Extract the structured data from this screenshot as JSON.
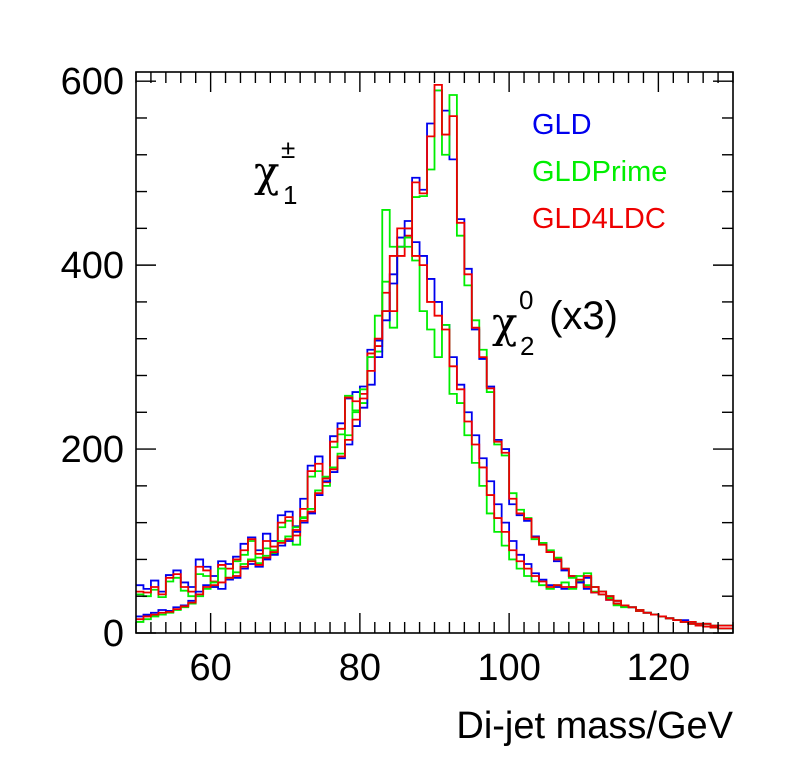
{
  "chart_data": {
    "type": "histogram-step",
    "xlabel": "Di-jet mass/GeV",
    "ylabel": "",
    "xlim": [
      50,
      130
    ],
    "ylim": [
      0,
      610
    ],
    "bin_width": 1,
    "x_start": 50,
    "x_ticks": [
      60,
      80,
      100,
      120
    ],
    "y_ticks": [
      0,
      200,
      400,
      600
    ],
    "grid": false,
    "legend_position": "top-right",
    "annotations": {
      "chargino": {
        "symbol": "χ",
        "sup": "±",
        "sub": "1"
      },
      "neutralino": {
        "symbol": "χ",
        "sup": "0",
        "sub": "2",
        "suffix": " (x3)"
      }
    },
    "series": [
      {
        "name": "GLD",
        "color": "#0000ee",
        "group": "chargino",
        "values": [
          52,
          48,
          57,
          45,
          63,
          68,
          55,
          50,
          80,
          72,
          62,
          78,
          75,
          83,
          97,
          104,
          90,
          108,
          100,
          128,
          132,
          116,
          146,
          182,
          192,
          168,
          214,
          228,
          255,
          262,
          268,
          308,
          318,
          350,
          390,
          430,
          448,
          495,
          482,
          554,
          590,
          568,
          515,
          450,
          396,
          330,
          298,
          268,
          210,
          200,
          140,
          128,
          122,
          105,
          98,
          88,
          78,
          68,
          62,
          55,
          48,
          44,
          42,
          36,
          32,
          30,
          28,
          24,
          22,
          20,
          18,
          16,
          14,
          14,
          12,
          10,
          10,
          8,
          8,
          8
        ]
      },
      {
        "name": "GLDPrime",
        "color": "#00ee00",
        "group": "chargino",
        "values": [
          42,
          40,
          47,
          39,
          56,
          60,
          46,
          40,
          64,
          62,
          50,
          70,
          60,
          78,
          85,
          100,
          82,
          92,
          86,
          115,
          122,
          96,
          126,
          170,
          176,
          160,
          202,
          216,
          258,
          242,
          250,
          300,
          306,
          382,
          332,
          420,
          420,
          474,
          475,
          504,
          590,
          520,
          585,
          432,
          378,
          340,
          308,
          262,
          205,
          193,
          152,
          134,
          125,
          102,
          98,
          90,
          82,
          70,
          60,
          56,
          52,
          45,
          42,
          38,
          30,
          28,
          28,
          24,
          22,
          20,
          18,
          16,
          14,
          12,
          12,
          10,
          10,
          8,
          8,
          8
        ]
      },
      {
        "name": "GLD4LDC",
        "color": "#ee0000",
        "group": "chargino",
        "values": [
          45,
          44,
          50,
          42,
          60,
          64,
          50,
          45,
          72,
          68,
          56,
          74,
          70,
          80,
          90,
          102,
          86,
          100,
          94,
          120,
          126,
          106,
          135,
          176,
          184,
          164,
          208,
          222,
          256,
          252,
          260,
          304,
          312,
          370,
          350,
          410,
          432,
          490,
          478,
          540,
          596,
          542,
          562,
          446,
          390,
          332,
          300,
          266,
          208,
          196,
          146,
          130,
          124,
          104,
          96,
          88,
          80,
          70,
          62,
          55,
          50,
          44,
          42,
          36,
          32,
          30,
          28,
          24,
          22,
          20,
          18,
          16,
          14,
          12,
          12,
          10,
          10,
          8,
          8,
          8
        ]
      },
      {
        "name": "GLD",
        "color": "#0000ee",
        "group": "neutralino",
        "values": [
          18,
          20,
          22,
          25,
          24,
          28,
          30,
          35,
          45,
          52,
          50,
          48,
          58,
          60,
          70,
          75,
          72,
          80,
          85,
          95,
          100,
          110,
          120,
          130,
          150,
          165,
          175,
          190,
          205,
          225,
          245,
          270,
          300,
          340,
          380,
          420,
          440,
          425,
          410,
          385,
          360,
          335,
          300,
          270,
          240,
          215,
          190,
          165,
          140,
          120,
          100,
          85,
          75,
          65,
          58,
          52,
          50,
          48,
          50,
          55,
          60,
          50,
          45,
          40,
          35,
          30,
          28,
          25,
          22,
          20,
          18,
          16,
          14,
          12,
          10,
          8,
          7,
          6,
          5,
          5
        ]
      },
      {
        "name": "GLDPrime",
        "color": "#00ee00",
        "group": "neutralino",
        "values": [
          12,
          15,
          18,
          20,
          22,
          25,
          28,
          32,
          40,
          48,
          55,
          70,
          60,
          66,
          75,
          80,
          76,
          84,
          90,
          100,
          105,
          115,
          125,
          135,
          155,
          170,
          180,
          195,
          215,
          240,
          265,
          300,
          345,
          460,
          420,
          420,
          430,
          405,
          350,
          330,
          300,
          335,
          260,
          250,
          215,
          185,
          160,
          130,
          110,
          95,
          80,
          70,
          62,
          56,
          52,
          48,
          52,
          55,
          48,
          62,
          65,
          50,
          45,
          40,
          35,
          30,
          28,
          25,
          22,
          20,
          18,
          16,
          14,
          12,
          10,
          8,
          7,
          6,
          5,
          5
        ]
      },
      {
        "name": "GLD4LDC",
        "color": "#ee0000",
        "group": "neutralino",
        "values": [
          15,
          18,
          20,
          22,
          23,
          26,
          29,
          33,
          42,
          50,
          52,
          55,
          60,
          62,
          72,
          78,
          74,
          82,
          88,
          98,
          102,
          112,
          122,
          132,
          152,
          168,
          178,
          192,
          210,
          232,
          255,
          285,
          320,
          350,
          410,
          440,
          440,
          410,
          400,
          360,
          345,
          330,
          290,
          265,
          230,
          205,
          180,
          150,
          125,
          110,
          90,
          78,
          70,
          62,
          56,
          50,
          52,
          50,
          50,
          58,
          62,
          50,
          45,
          40,
          35,
          30,
          28,
          25,
          22,
          20,
          18,
          16,
          14,
          12,
          10,
          8,
          7,
          6,
          5,
          5
        ]
      }
    ]
  }
}
